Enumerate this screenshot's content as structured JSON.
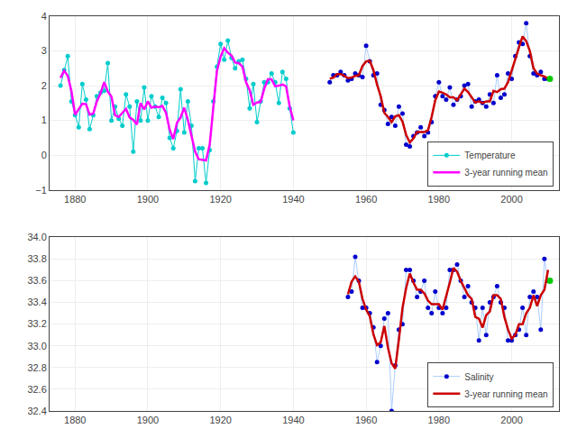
{
  "chart_data": [
    {
      "type": "line",
      "xlim": [
        1873,
        2013
      ],
      "xticks": [
        1880,
        1900,
        1920,
        1940,
        1960,
        1980,
        2000
      ],
      "ylim": [
        -1,
        4
      ],
      "yticks": [
        {
          "value": -1,
          "label": "−1"
        },
        0,
        1,
        2,
        3,
        4
      ],
      "grid": true,
      "legend": "lower right",
      "series": [
        {
          "name": "Temperature",
          "type": "line",
          "color": "#00CCCC",
          "marker": "circle",
          "x": [
            1876,
            1877,
            1878,
            1879,
            1880,
            1881,
            1882,
            1883,
            1884,
            1885,
            1886,
            1887,
            1888,
            1889,
            1890,
            1891,
            1892,
            1893,
            1894,
            1895,
            1896,
            1897,
            1898,
            1899,
            1900,
            1901,
            1902,
            1903,
            1904,
            1905,
            1906,
            1907,
            1908,
            1909,
            1910,
            1911,
            1912,
            1913,
            1914,
            1915,
            1916,
            1917,
            1918,
            1919,
            1920,
            1921,
            1922,
            1923,
            1924,
            1925,
            1926,
            1927,
            1928,
            1929,
            1930,
            1931,
            1932,
            1933,
            1934,
            1935,
            1936,
            1937,
            1938,
            1939,
            1940
          ],
          "values": [
            2.0,
            2.45,
            2.85,
            1.55,
            1.15,
            0.8,
            2.05,
            1.6,
            0.75,
            1.15,
            1.7,
            1.8,
            1.85,
            2.65,
            1.0,
            1.4,
            1.05,
            0.85,
            1.75,
            1.4,
            0.1,
            1.55,
            1.0,
            1.95,
            1.0,
            1.7,
            1.4,
            1.1,
            1.65,
            1.5,
            0.5,
            0.2,
            0.7,
            1.9,
            0.65,
            1.55,
            0.85,
            -0.75,
            0.2,
            0.2,
            -0.8,
            0.15,
            1.55,
            2.55,
            3.2,
            2.75,
            3.3,
            2.8,
            2.5,
            2.7,
            2.75,
            2.2,
            1.35,
            2.05,
            0.95,
            1.55,
            2.1,
            2.1,
            2.35,
            2.1,
            1.5,
            2.4,
            2.2,
            1.35,
            0.65
          ]
        },
        {
          "type": "line",
          "color": "#AACCFF",
          "marker": "circle",
          "colors": [
            "#0000CC",
            "#0000CC",
            "#0000CC",
            "#0000CC",
            "#0000CC",
            "#0000CC",
            "#0000CC",
            "#0000CC",
            "#0000CC",
            "#0000CC",
            "#0000CC",
            "#0000CC",
            "#0000CC",
            "#0000CC",
            "#0000CC",
            "#0000CC",
            "#0000CC",
            "#0000CC",
            "#0000CC",
            "#0000CC",
            "#0000CC",
            "#0000CC",
            "#0000CC",
            "#0000CC",
            "#0000CC",
            "#0000CC",
            "#0000CC",
            "#0000CC",
            "#0000CC",
            "#0000CC",
            "#0000CC",
            "#0000CC",
            "#0000CC",
            "#0000CC",
            "#0000CC",
            "#0000CC",
            "#0000CC",
            "#0000CC",
            "#0000CC",
            "#0000CC",
            "#0000CC",
            "#0000CC",
            "#0000CC",
            "#0000CC",
            "#0000CC",
            "#0000CC",
            "#0000CC",
            "#0000CC",
            "#0000CC",
            "#0000CC",
            "#0000CC",
            "#0000CC",
            "#0000CC",
            "#0000CC",
            "#0000CC",
            "#0000CC",
            "#0000CC",
            "#0000CC",
            "#0000CC",
            "#0000CC",
            "#0000CC"
          ],
          "x": [
            1950,
            1951,
            1952,
            1953,
            1954,
            1955,
            1956,
            1957,
            1958,
            1959,
            1960,
            1961,
            1962,
            1963,
            1964,
            1965,
            1966,
            1967,
            1968,
            1969,
            1970,
            1971,
            1972,
            1973,
            1974,
            1975,
            1976,
            1977,
            1978,
            1979,
            1980,
            1981,
            1982,
            1983,
            1984,
            1985,
            1986,
            1987,
            1988,
            1989,
            1990,
            1991,
            1992,
            1993,
            1994,
            1995,
            1996,
            1997,
            1998,
            1999,
            2000,
            2001,
            2002,
            2003,
            2004,
            2005,
            2006,
            2007,
            2008,
            2009,
            2010
          ],
          "values": [
            2.1,
            2.3,
            2.3,
            2.4,
            2.3,
            2.15,
            2.2,
            2.35,
            2.3,
            2.25,
            3.15,
            2.7,
            2.3,
            2.35,
            1.45,
            1.3,
            0.9,
            1.1,
            0.85,
            1.4,
            1.2,
            0.3,
            0.25,
            0.55,
            0.65,
            0.8,
            0.55,
            0.65,
            0.95,
            1.7,
            2.1,
            1.7,
            1.6,
            1.95,
            1.45,
            1.6,
            1.7,
            2.0,
            2.05,
            1.4,
            1.55,
            1.6,
            1.5,
            1.4,
            1.75,
            1.5,
            2.3,
            1.65,
            1.75,
            2.35,
            2.2,
            2.85,
            3.25,
            3.2,
            3.8,
            2.85,
            2.35,
            2.3,
            2.4,
            2.2,
            2.2
          ]
        },
        {
          "name": "3-year running mean",
          "type": "line",
          "color": "#FF00FF",
          "x": [
            1876,
            1877,
            1878,
            1879,
            1880,
            1881,
            1882,
            1883,
            1884,
            1885,
            1886,
            1887,
            1888,
            1889,
            1890,
            1891,
            1892,
            1893,
            1894,
            1895,
            1896,
            1897,
            1898,
            1899,
            1900,
            1901,
            1902,
            1903,
            1904,
            1905,
            1906,
            1907,
            1908,
            1909,
            1910,
            1911,
            1912,
            1913,
            1914,
            1915,
            1916,
            1917,
            1918,
            1919,
            1920,
            1921,
            1922,
            1923,
            1924,
            1925,
            1926,
            1927,
            1928,
            1929,
            1930,
            1931,
            1932,
            1933,
            1934,
            1935,
            1936,
            1937,
            1938,
            1939,
            1940
          ],
          "values": [
            2.225,
            2.4333,
            2.2833,
            1.85,
            1.1667,
            1.3333,
            1.4833,
            1.4667,
            1.1667,
            1.2,
            1.55,
            1.7833,
            2.1,
            1.8333,
            1.6833,
            1.15,
            1.1,
            1.2167,
            1.3333,
            1.0833,
            1.0167,
            0.8833,
            1.5,
            1.3167,
            1.55,
            1.3667,
            1.4,
            1.3833,
            1.4167,
            1.2167,
            0.7333,
            0.4667,
            0.9333,
            1.0833,
            1.3667,
            1.0167,
            0.55,
            0.1,
            -0.1167,
            -0.1333,
            -0.15,
            0.3,
            1.4167,
            2.4333,
            2.8333,
            3.0833,
            2.95,
            2.8667,
            2.6667,
            2.65,
            2.55,
            2.1,
            1.8667,
            1.45,
            1.5167,
            1.5333,
            1.9167,
            2.1833,
            2.1833,
            1.9833,
            2.0,
            2.0333,
            1.9833,
            1.4,
            1.0
          ]
        },
        {
          "type": "line",
          "color": "#CC0000",
          "x": [
            1950,
            1951,
            1952,
            1953,
            1954,
            1955,
            1956,
            1957,
            1958,
            1959,
            1960,
            1961,
            1962,
            1963,
            1964,
            1965,
            1966,
            1967,
            1968,
            1969,
            1970,
            1971,
            1972,
            1973,
            1974,
            1975,
            1976,
            1977,
            1978,
            1979,
            1980,
            1981,
            1982,
            1983,
            1984,
            1985,
            1986,
            1987,
            1988,
            1989,
            1990,
            1991,
            1992,
            1993,
            1994,
            1995,
            1996,
            1997,
            1998,
            1999,
            2000,
            2001,
            2002,
            2003,
            2004,
            2005,
            2006,
            2007,
            2008,
            2009,
            2010
          ],
          "values": [
            2.2,
            2.2333,
            2.3333,
            2.3333,
            2.2833,
            2.2167,
            2.2333,
            2.2833,
            2.3,
            2.5667,
            2.7,
            2.7167,
            2.45,
            2.0333,
            1.7,
            1.2167,
            1.1,
            0.95,
            1.1167,
            1.15,
            0.9667,
            0.5833,
            0.3667,
            0.4833,
            0.6667,
            0.6667,
            0.6667,
            0.7167,
            1.1,
            1.5833,
            1.8333,
            1.8,
            1.75,
            1.6667,
            1.6667,
            1.5833,
            1.7667,
            1.9167,
            1.8167,
            1.6667,
            1.5167,
            1.55,
            1.5,
            1.55,
            1.55,
            1.85,
            1.8167,
            1.9,
            1.9167,
            2.1,
            2.4667,
            2.7667,
            3.1,
            3.4167,
            3.2833,
            3.0,
            2.5,
            2.35,
            2.3,
            2.2667,
            2.2
          ]
        },
        {
          "type": "scatter",
          "color": "#00CC00",
          "x": [
            2010.5
          ],
          "values": [
            2.2
          ]
        }
      ]
    },
    {
      "type": "line",
      "xlim": [
        1873,
        2013
      ],
      "xticks": [
        1880,
        1900,
        1920,
        1940,
        1960,
        1980,
        2000
      ],
      "ylim": [
        32.4,
        34
      ],
      "yticks": [
        32.4,
        32.6,
        32.8,
        {
          "value": 33,
          "label": "33.0"
        },
        33.2,
        33.4,
        33.6,
        33.8,
        {
          "value": 34,
          "label": "34.0"
        }
      ],
      "grid": true,
      "legend": "lower right",
      "series": [
        {
          "name": "Salinity",
          "type": "line",
          "color": "#AACCFF",
          "marker": "circle",
          "colors": [
            "#0000CC",
            "#0000CC",
            "#0000CC",
            "#0000CC",
            "#0000CC",
            "#0000CC",
            "#0000CC",
            "#0000CC",
            "#0000CC",
            "#0000CC",
            "#0000CC",
            "#0000CC",
            "#0000CC",
            "#0000CC",
            "#0000CC",
            "#0000CC",
            "#0000CC",
            "#0000CC",
            "#0000CC",
            "#0000CC",
            "#0000CC",
            "#0000CC",
            "#0000CC",
            "#0000CC",
            "#0000CC",
            "#0000CC",
            "#0000CC",
            "#0000CC",
            "#0000CC",
            "#0000CC",
            "#0000CC",
            "#0000CC",
            "#0000CC",
            "#0000CC",
            "#0000CC",
            "#0000CC",
            "#0000CC",
            "#0000CC",
            "#0000CC",
            "#0000CC",
            "#0000CC",
            "#0000CC",
            "#0000CC",
            "#0000CC",
            "#0000CC",
            "#0000CC",
            "#0000CC",
            "#0000CC",
            "#0000CC",
            "#0000CC",
            "#0000CC",
            "#0000CC",
            "#0000CC",
            "#0000CC",
            "#0000CC",
            "#0000CC"
          ],
          "x": [
            1955,
            1956,
            1957,
            1958,
            1959,
            1960,
            1961,
            1962,
            1963,
            1964,
            1965,
            1966,
            1967,
            1968,
            1969,
            1970,
            1971,
            1972,
            1973,
            1974,
            1975,
            1976,
            1977,
            1978,
            1979,
            1980,
            1981,
            1982,
            1983,
            1984,
            1985,
            1986,
            1987,
            1988,
            1989,
            1990,
            1991,
            1992,
            1993,
            1994,
            1995,
            1996,
            1997,
            1998,
            1999,
            2000,
            2001,
            2002,
            2003,
            2004,
            2005,
            2006,
            2007,
            2008,
            2009,
            2010
          ],
          "values": [
            33.45,
            33.5,
            33.82,
            33.6,
            33.35,
            33.35,
            33.3,
            33.17,
            32.85,
            33.0,
            33.25,
            33.3,
            32.4,
            32.82,
            33.15,
            33.2,
            33.7,
            33.7,
            33.6,
            33.45,
            33.5,
            33.6,
            33.35,
            33.3,
            33.5,
            33.35,
            33.3,
            33.35,
            33.7,
            33.7,
            33.75,
            33.6,
            33.45,
            33.55,
            33.4,
            33.35,
            33.05,
            33.35,
            33.1,
            33.4,
            33.45,
            33.55,
            33.4,
            33.35,
            33.05,
            33.05,
            33.1,
            33.15,
            33.35,
            33.1,
            33.45,
            33.5,
            33.45,
            33.15,
            33.8,
            33.6
          ]
        },
        {
          "type": "scatter",
          "color": "#00CC00",
          "x": [
            2010.5
          ],
          "values": [
            33.6
          ]
        },
        {
          "name": "3-year running mean",
          "type": "line",
          "color": "#CC0000",
          "x": [
            1955,
            1956,
            1957,
            1958,
            1959,
            1960,
            1961,
            1962,
            1963,
            1964,
            1965,
            1966,
            1967,
            1968,
            1969,
            1970,
            1971,
            1972,
            1973,
            1974,
            1975,
            1976,
            1977,
            1978,
            1979,
            1980,
            1981,
            1982,
            1983,
            1984,
            1985,
            1986,
            1987,
            1988,
            1989,
            1990,
            1991,
            1992,
            1993,
            1994,
            1995,
            1996,
            1997,
            1998,
            1999,
            2000,
            2001,
            2002,
            2003,
            2004,
            2005,
            2006,
            2007,
            2008,
            2009,
            2010
          ],
          "values": [
            33.475,
            33.59,
            33.64,
            33.59,
            33.4333,
            33.3333,
            33.2733,
            33.1067,
            33.0067,
            33.0333,
            33.1833,
            32.9833,
            32.84,
            32.79,
            33.0567,
            33.35,
            33.5333,
            33.6667,
            33.5833,
            33.5167,
            33.5167,
            33.4833,
            33.4167,
            33.3833,
            33.3833,
            33.3833,
            33.3333,
            33.45,
            33.5833,
            33.7167,
            33.6833,
            33.6,
            33.5333,
            33.4667,
            33.4333,
            33.2667,
            33.25,
            33.1667,
            33.2833,
            33.3167,
            33.4667,
            33.4667,
            33.4333,
            33.2667,
            33.15,
            33.0667,
            33.1,
            33.2,
            33.2,
            33.3,
            33.35,
            33.4667,
            33.3667,
            33.4667,
            33.5167,
            33.7
          ]
        }
      ]
    }
  ]
}
